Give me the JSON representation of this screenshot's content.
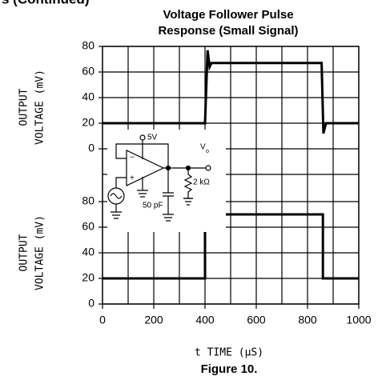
{
  "header": "s (Continued)",
  "chart_data": [
    {
      "type": "line",
      "title": [
        "Voltage Follower Pulse",
        "Response (Small Signal)"
      ],
      "ylabel": [
        "OUTPUT",
        "VOLTAGE (mV)"
      ],
      "xlim": [
        0,
        1000
      ],
      "ylim": [
        -40,
        80
      ],
      "yticks": [
        0,
        20,
        40,
        60,
        80
      ],
      "grid": true,
      "x": [
        0,
        400,
        410,
        418,
        425,
        855,
        862,
        872,
        1000
      ],
      "series": [
        {
          "color": "#000000",
          "values": [
            20,
            20,
            77,
            64,
            67,
            67,
            12,
            20,
            20
          ]
        }
      ]
    },
    {
      "type": "line",
      "ylabel": [
        "OUTPUT",
        "VOLTAGE (mV)"
      ],
      "xlabel": "t  TIME (μS)",
      "xlim": [
        0,
        1000
      ],
      "xticks": [
        0,
        200,
        400,
        600,
        800,
        1000
      ],
      "ylim": [
        0,
        80
      ],
      "yticks": [
        0,
        20,
        40,
        60,
        80
      ],
      "grid": true,
      "x": [
        0,
        400,
        400,
        860,
        860,
        1000
      ],
      "series": [
        {
          "color": "#000000",
          "values": [
            20,
            20,
            70,
            70,
            20,
            20
          ]
        }
      ]
    }
  ],
  "circuit": {
    "supply": "5V",
    "output": "V",
    "output_sub": "o",
    "resistor": "2 kΩ",
    "capacitor": "50 pF",
    "minus": "−",
    "plus": "+"
  },
  "caption": "Figure 10."
}
